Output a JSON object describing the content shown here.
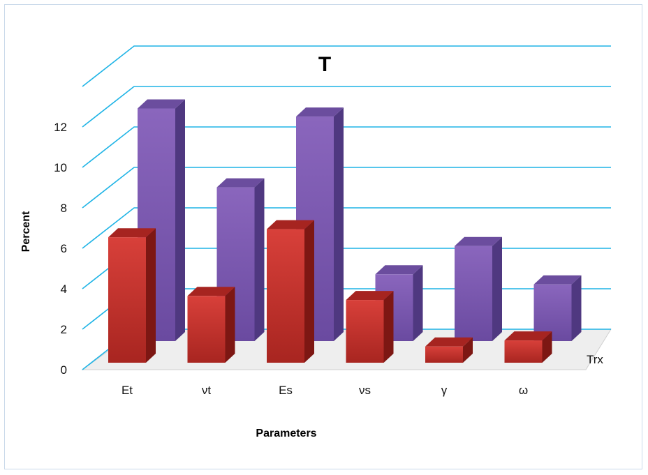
{
  "chart_data": {
    "type": "bar",
    "title": "T",
    "xlabel": "Parameters",
    "ylabel": "Percent",
    "categories": [
      "Et",
      "νt",
      "Es",
      "νs",
      "γ",
      "ω"
    ],
    "ylim": [
      0,
      12
    ],
    "yticks": [
      0,
      2,
      4,
      6,
      8,
      10,
      12
    ],
    "grid": true,
    "series": [
      {
        "name": "",
        "color": "#c0302b",
        "values": [
          6.2,
          3.3,
          6.6,
          3.1,
          0.8,
          1.1
        ]
      },
      {
        "name": "Trx",
        "color": "#7b57ad",
        "values": [
          11.5,
          7.6,
          11.1,
          3.3,
          4.7,
          2.8
        ]
      }
    ],
    "colors": {
      "grid": "#1fb4e6",
      "front_bar": "#c0302b",
      "back_bar": "#7b57ad"
    }
  }
}
